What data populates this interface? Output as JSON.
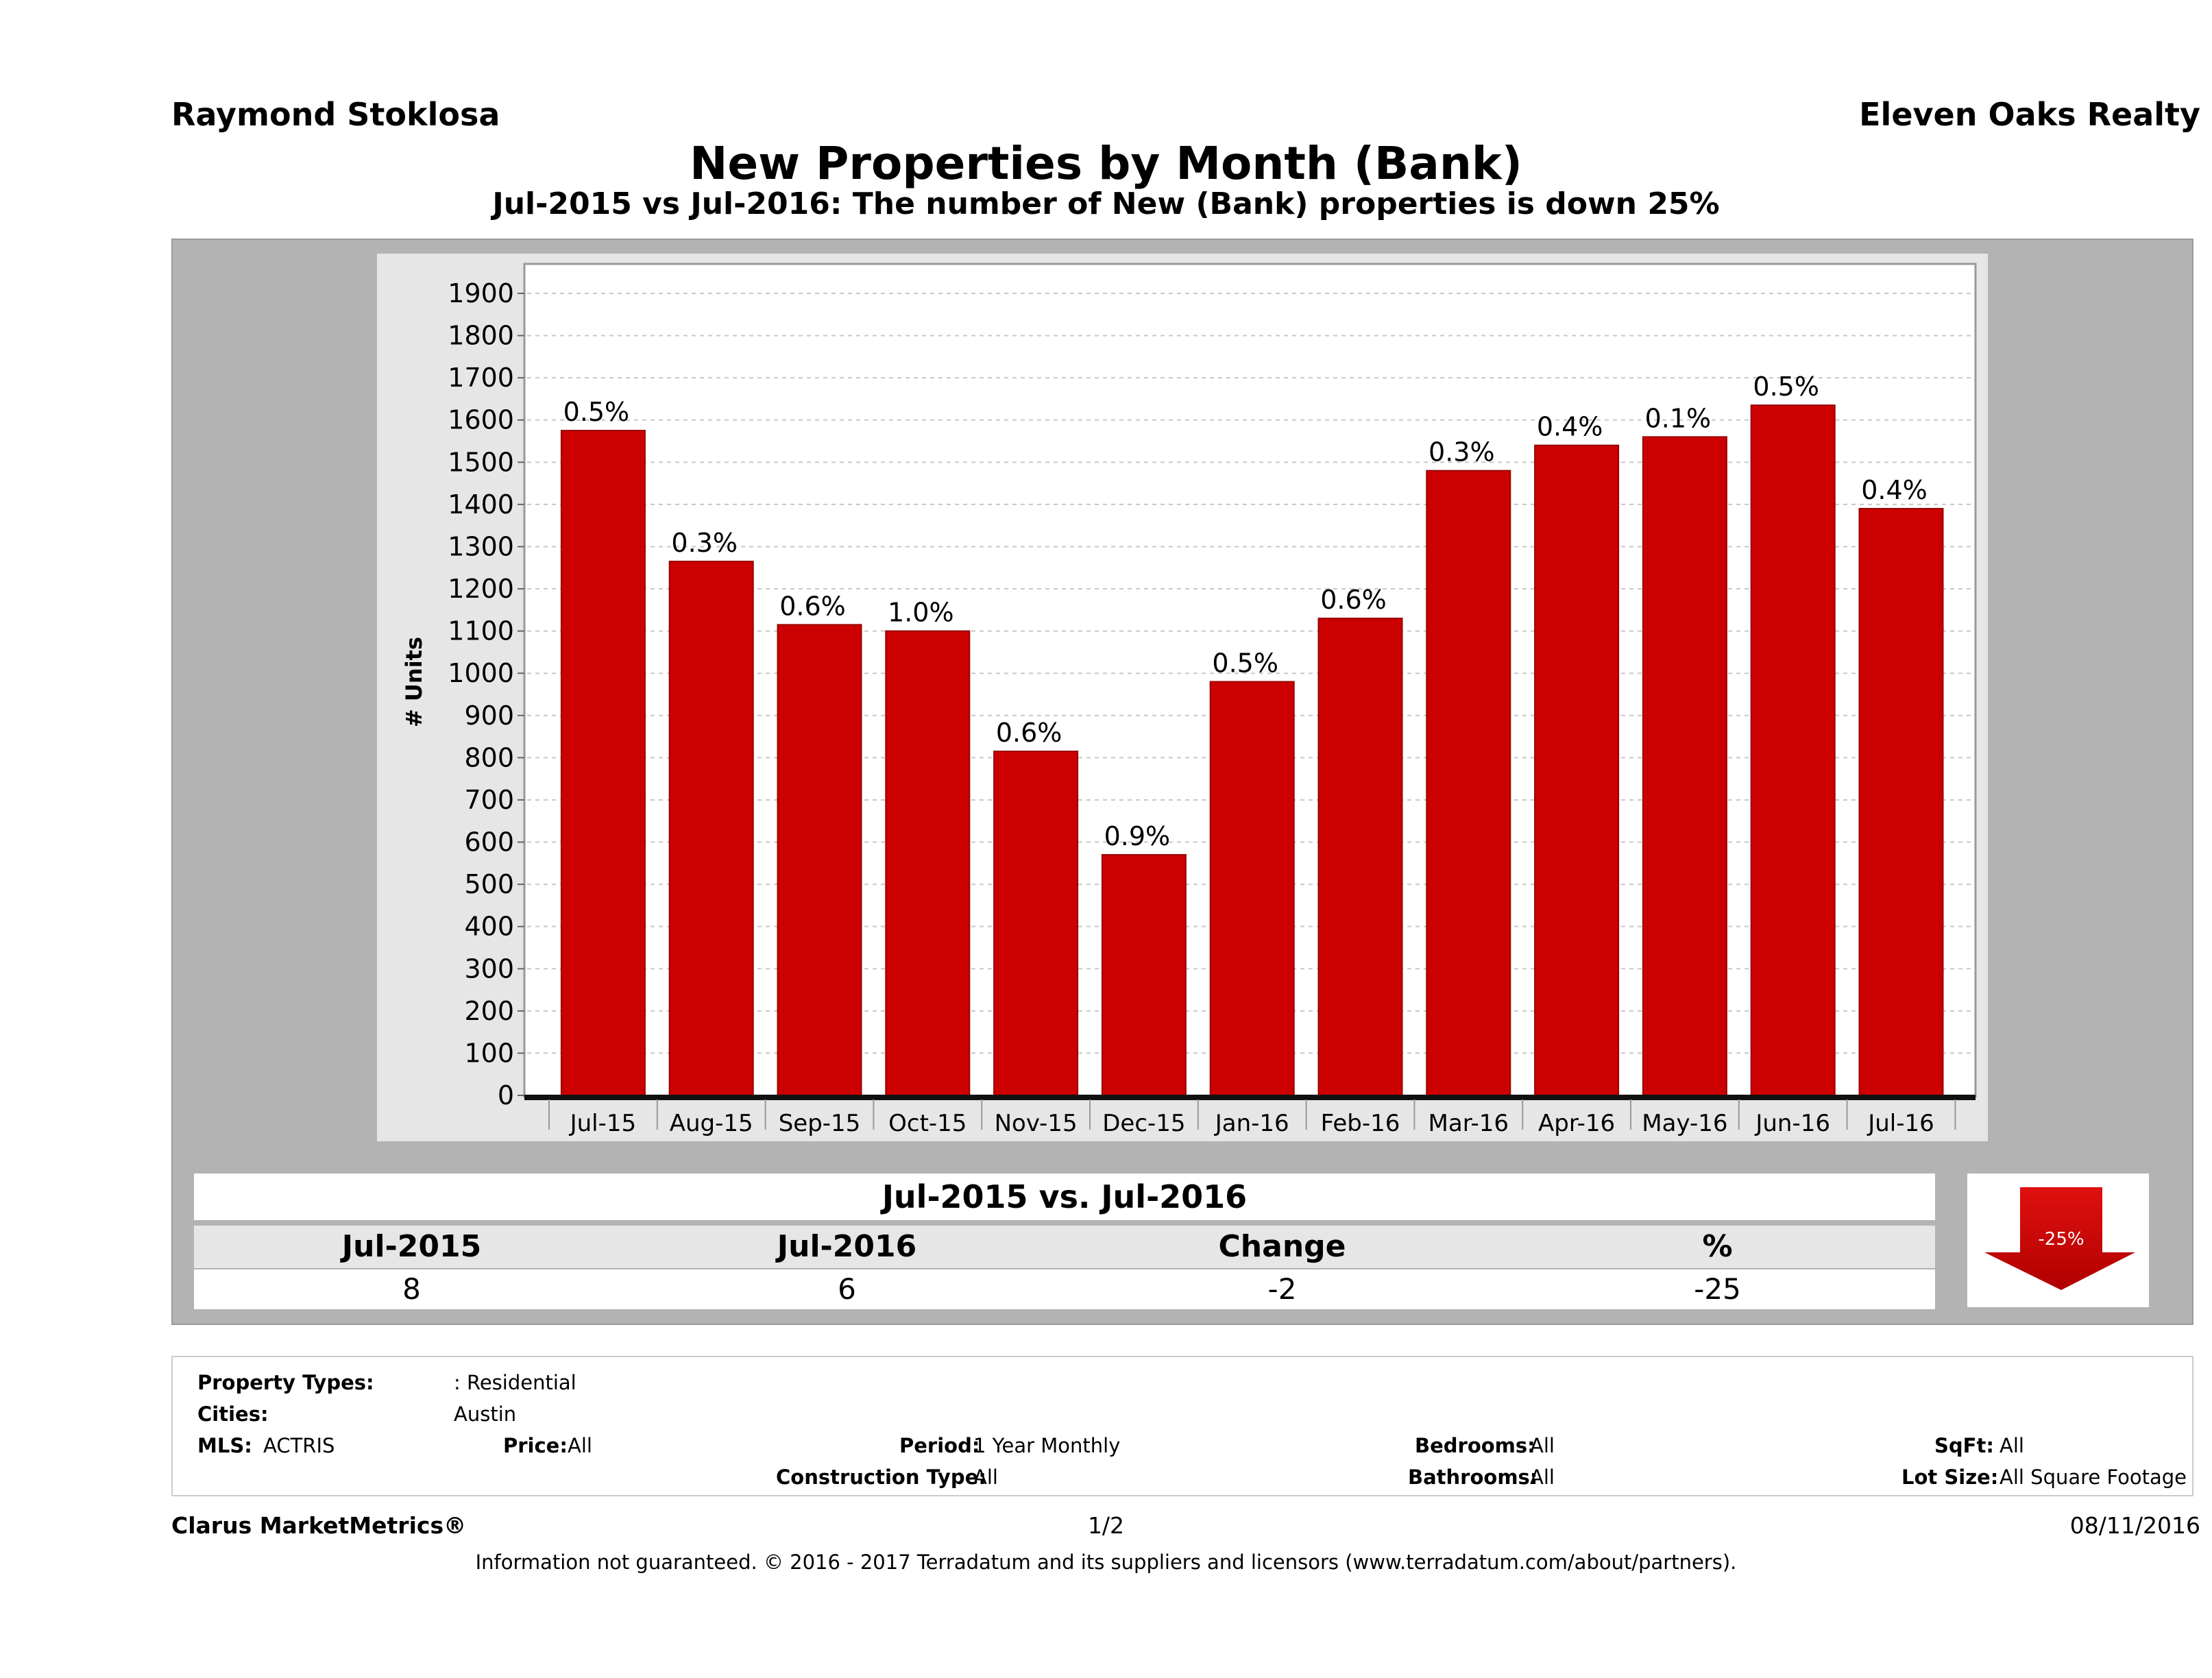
{
  "header": {
    "agent_name": "Raymond Stoklosa",
    "brokerage": "Eleven Oaks Realty",
    "title": "New Properties by Month (Bank)",
    "subtitle": "Jul-2015 vs Jul-2016: The number of New (Bank)  properties is down 25%"
  },
  "chart_data": {
    "type": "bar",
    "ylabel": "# Units",
    "xlabel": "",
    "ylim": [
      0,
      1900
    ],
    "yticks": [
      0,
      100,
      200,
      300,
      400,
      500,
      600,
      700,
      800,
      900,
      1000,
      1100,
      1200,
      1300,
      1400,
      1500,
      1600,
      1700,
      1800,
      1900
    ],
    "grid": true,
    "categories": [
      "Jul-15",
      "Aug-15",
      "Sep-15",
      "Oct-15",
      "Nov-15",
      "Dec-15",
      "Jan-16",
      "Feb-16",
      "Mar-16",
      "Apr-16",
      "May-16",
      "Jun-16",
      "Jul-16"
    ],
    "values": [
      1575,
      1265,
      1115,
      1100,
      815,
      570,
      980,
      1130,
      1480,
      1540,
      1560,
      1635,
      1390
    ],
    "data_labels": [
      "0.5%",
      "0.3%",
      "0.6%",
      "1.0%",
      "0.6%",
      "0.9%",
      "0.5%",
      "0.6%",
      "0.3%",
      "0.4%",
      "0.1%",
      "0.5%",
      "0.4%"
    ],
    "bar_color": "#cc0000"
  },
  "summary": {
    "heading": "Jul-2015 vs. Jul-2016",
    "columns": [
      "Jul-2015",
      "Jul-2016",
      "Change",
      "%"
    ],
    "values": [
      "8",
      "6",
      "-2",
      "-25"
    ],
    "badge": "-25%",
    "badge_color": "#cc0000"
  },
  "filters": {
    "property_types_label": "Property Types:",
    "property_types_value": ": Residential",
    "cities_label": "Cities:",
    "cities_value": "Austin",
    "mls_label": "MLS:",
    "mls_value": "ACTRIS",
    "price_label": "Price:",
    "price_value": "All",
    "period_label": "Period:",
    "period_value": "1 Year Monthly",
    "construction_label": "Construction Type:",
    "construction_value": "All",
    "bedrooms_label": "Bedrooms:",
    "bedrooms_value": "All",
    "bathrooms_label": "Bathrooms:",
    "bathrooms_value": "All",
    "sqft_label": "SqFt:",
    "sqft_value": "All",
    "lot_label": "Lot Size:",
    "lot_value": "All Square Footage"
  },
  "footer": {
    "product": "Clarus MarketMetrics®",
    "page": "1/2",
    "date": "08/11/2016",
    "disclaimer": "Information not guaranteed. © 2016 - 2017 Terradatum and its suppliers and licensors (www.terradatum.com/about/partners)."
  }
}
